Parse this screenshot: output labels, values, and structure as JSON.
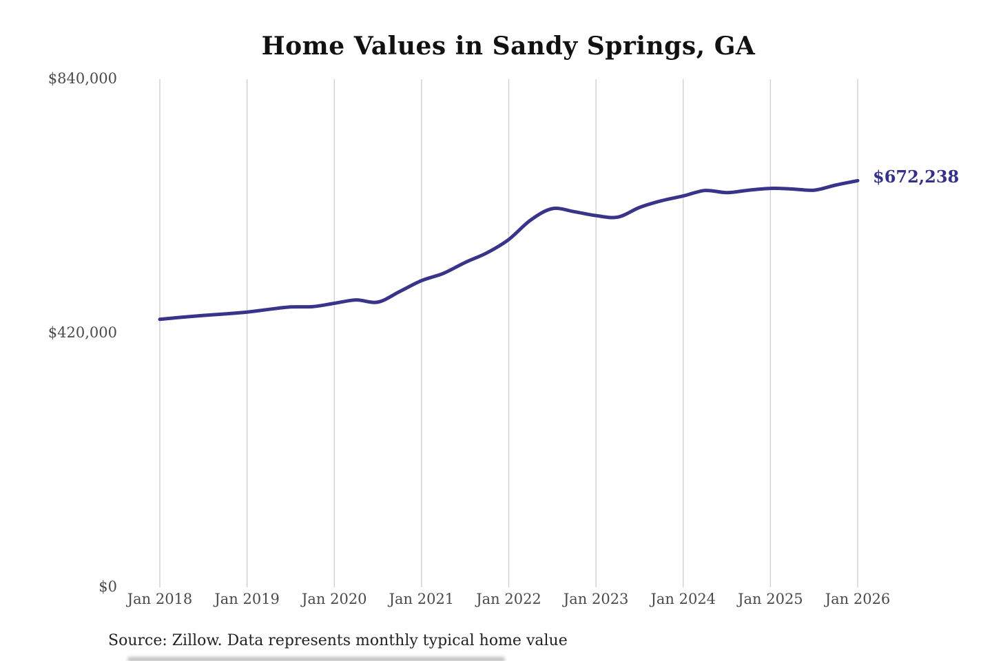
{
  "chart": {
    "title": "Home Values in Sandy Springs, GA",
    "source": "Source: Zillow. Data represents monthly typical home value"
  },
  "chart_data": {
    "type": "line",
    "title": "Home Values in Sandy Springs, GA",
    "series_name": "Monthly typical home value",
    "xlabel": "",
    "ylabel": "",
    "grid": "vertical-only",
    "legend": "none",
    "xlim_months": [
      0,
      96
    ],
    "ylim": [
      0,
      840000
    ],
    "y_ticks": [
      {
        "label": "$0",
        "value": 0
      },
      {
        "label": "$420,000",
        "value": 420000
      },
      {
        "label": "$840,000",
        "value": 840000
      }
    ],
    "x_ticks": [
      {
        "label": "Jan 2018",
        "month": 0
      },
      {
        "label": "Jan 2019",
        "month": 12
      },
      {
        "label": "Jan 2020",
        "month": 24
      },
      {
        "label": "Jan 2021",
        "month": 36
      },
      {
        "label": "Jan 2022",
        "month": 48
      },
      {
        "label": "Jan 2023",
        "month": 60
      },
      {
        "label": "Jan 2024",
        "month": 72
      },
      {
        "label": "Jan 2025",
        "month": 84
      },
      {
        "label": "Jan 2026",
        "month": 96
      }
    ],
    "points": [
      [
        0,
        443000
      ],
      [
        3,
        446500
      ],
      [
        6,
        449500
      ],
      [
        9,
        452000
      ],
      [
        12,
        455000
      ],
      [
        15,
        459500
      ],
      [
        18,
        463500
      ],
      [
        21,
        464000
      ],
      [
        24,
        469500
      ],
      [
        27,
        475000
      ],
      [
        30,
        471500
      ],
      [
        33,
        489000
      ],
      [
        36,
        507000
      ],
      [
        39,
        519000
      ],
      [
        42,
        537000
      ],
      [
        45,
        553000
      ],
      [
        48,
        575000
      ],
      [
        51,
        607000
      ],
      [
        54,
        626000
      ],
      [
        57,
        621000
      ],
      [
        60,
        614500
      ],
      [
        63,
        612000
      ],
      [
        66,
        628000
      ],
      [
        69,
        639000
      ],
      [
        72,
        647000
      ],
      [
        75,
        656000
      ],
      [
        78,
        652500
      ],
      [
        81,
        656500
      ],
      [
        84,
        659500
      ],
      [
        87,
        658500
      ],
      [
        90,
        656500
      ],
      [
        93,
        665000
      ],
      [
        96,
        672238
      ]
    ],
    "end_value": 672238,
    "end_label": "$672,238",
    "line_color": "#39338a",
    "annotation_color": "#35318b",
    "grid_color": "#cccccc"
  }
}
